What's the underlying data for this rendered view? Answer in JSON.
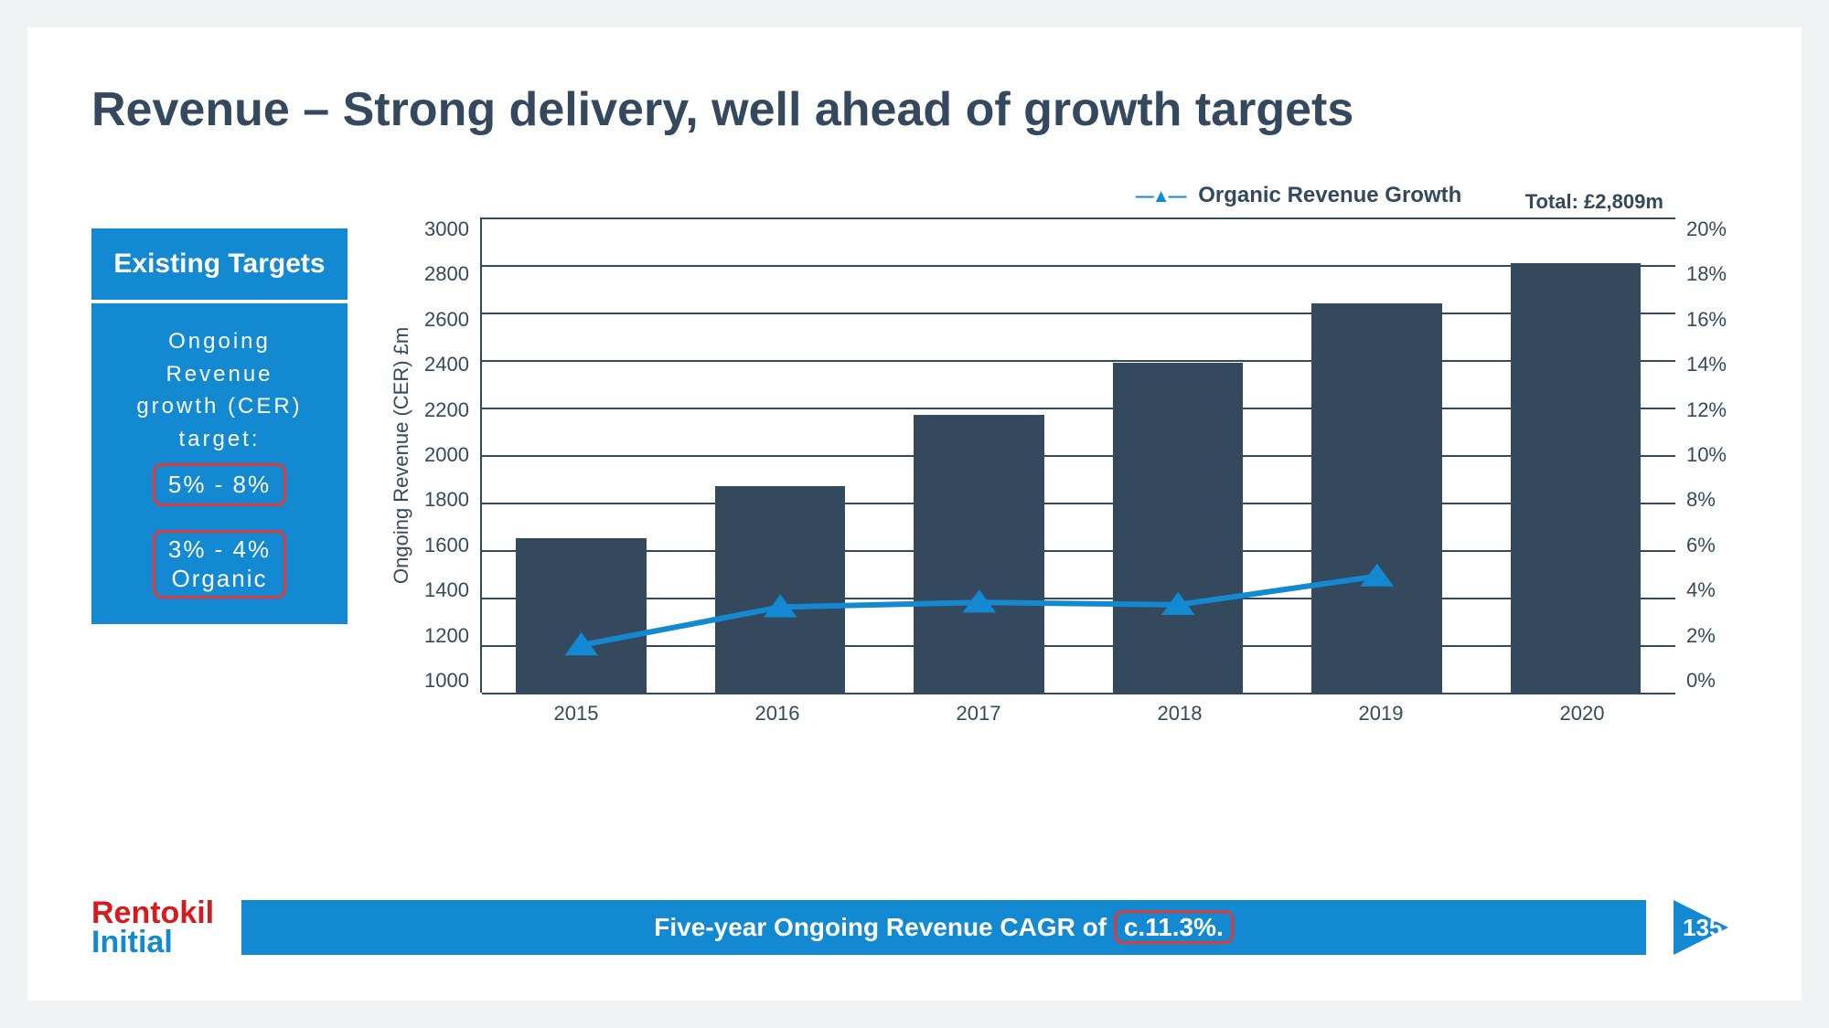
{
  "title": "Revenue – Strong delivery, well ahead of growth targets",
  "targets": {
    "header": "Existing Targets",
    "line1": "Ongoing",
    "line2": "Revenue",
    "line3": "growth (CER)",
    "line4": "target:",
    "range1": "5% - 8%",
    "range2": "3% - 4%",
    "range2_label": "Organic"
  },
  "legend": {
    "label": "Organic Revenue Growth"
  },
  "chart": {
    "type": "bar+line",
    "y_left_title": "Ongoing Revenue (CER)\n£m",
    "y_left": {
      "min": 1000,
      "max": 3000,
      "step": 200
    },
    "y_right": {
      "min": 0,
      "max": 20,
      "step": 2,
      "suffix": "%"
    },
    "categories": [
      "2015",
      "2016",
      "2017",
      "2018",
      "2019",
      "2020"
    ],
    "bar_values": [
      1650,
      1870,
      2170,
      2390,
      2640,
      2809
    ],
    "bar_color": "#34495e",
    "line_values_pct": [
      2.0,
      3.6,
      3.8,
      3.7,
      4.9,
      null
    ],
    "line_color": "#1389d1",
    "line_marker": "triangle",
    "total_label": "Total: £2,809m",
    "grid_color": "#34495e",
    "background_color": "#ffffff"
  },
  "footer": {
    "brand_top": "Rentokil",
    "brand_bottom": "Initial",
    "bar_text_pre": "Five-year Ongoing Revenue CAGR of",
    "bar_highlight": "c.11.3%.",
    "page_number": "135"
  },
  "colors": {
    "accent_blue": "#1389d1",
    "dark_slate": "#34495e",
    "highlight_red": "#e03a3a",
    "brand_red": "#d71a1e"
  }
}
